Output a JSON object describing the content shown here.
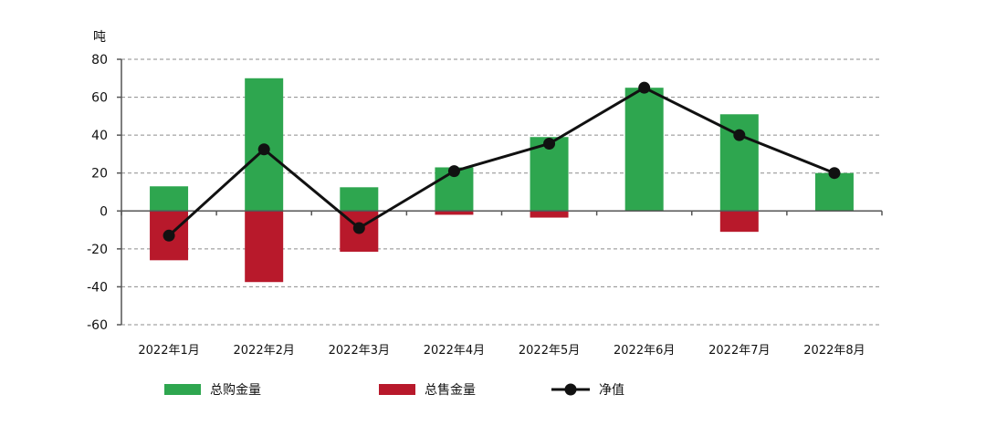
{
  "chart_data": {
    "type": "bar",
    "categories": [
      "2022年1月",
      "2022年2月",
      "2022年3月",
      "2022年4月",
      "2022年5月",
      "2022年6月",
      "2022年7月",
      "2022年8月"
    ],
    "series": [
      {
        "name": "总购金量",
        "kind": "bar",
        "color": "#2ea64f",
        "values": [
          13,
          70,
          12.5,
          23,
          39,
          65,
          51,
          20
        ]
      },
      {
        "name": "总售金量",
        "kind": "bar",
        "color": "#b8192b",
        "values": [
          -26,
          -37.5,
          -21.5,
          -2,
          -3.5,
          0,
          -11,
          0
        ]
      },
      {
        "name": "净值",
        "kind": "line",
        "color": "#111111",
        "values": [
          -13,
          32.5,
          -9,
          21,
          35.5,
          65,
          40,
          20
        ]
      }
    ],
    "title": "",
    "xlabel": "",
    "ylabel": "吨",
    "ylim": [
      -60,
      80
    ],
    "yticks": [
      80,
      60,
      40,
      20,
      0,
      -20,
      -40,
      -60
    ],
    "grid": true,
    "legend_position": "bottom"
  }
}
